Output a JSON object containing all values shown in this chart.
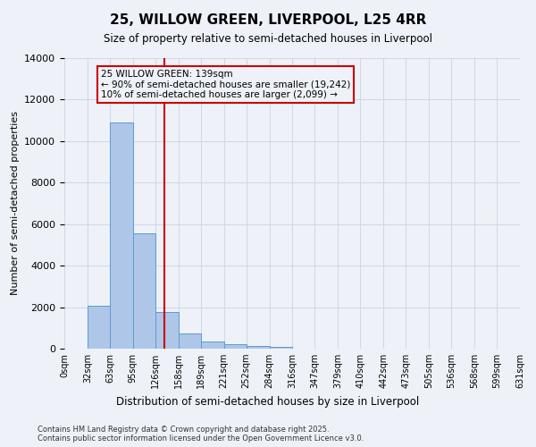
{
  "title": "25, WILLOW GREEN, LIVERPOOL, L25 4RR",
  "subtitle": "Size of property relative to semi-detached houses in Liverpool",
  "xlabel": "Distribution of semi-detached houses by size in Liverpool",
  "ylabel": "Number of semi-detached properties",
  "property_size": 139,
  "annotation_text": "25 WILLOW GREEN: 139sqm\n← 90% of semi-detached houses are smaller (19,242)\n10% of semi-detached houses are larger (2,099) →",
  "bar_edges": [
    0,
    32,
    63,
    95,
    126,
    158,
    189,
    221,
    252,
    284,
    316,
    347,
    379,
    410,
    442,
    473,
    505,
    536,
    568,
    599,
    631
  ],
  "bar_heights": [
    0,
    2050,
    10900,
    5550,
    1750,
    750,
    350,
    200,
    110,
    100,
    0,
    0,
    0,
    0,
    0,
    0,
    0,
    0,
    0,
    0
  ],
  "tick_labels": [
    "0sqm",
    "32sqm",
    "63sqm",
    "95sqm",
    "126sqm",
    "158sqm",
    "189sqm",
    "221sqm",
    "252sqm",
    "284sqm",
    "316sqm",
    "347sqm",
    "379sqm",
    "410sqm",
    "442sqm",
    "473sqm",
    "505sqm",
    "536sqm",
    "568sqm",
    "599sqm",
    "631sqm"
  ],
  "ylim": [
    0,
    14000
  ],
  "yticks": [
    0,
    2000,
    4000,
    6000,
    8000,
    10000,
    12000,
    14000
  ],
  "bar_color": "#aec6e8",
  "bar_edge_color": "#5b9bd5",
  "red_line_color": "#cc0000",
  "grid_color": "#d0d8e8",
  "bg_color": "#eef2f8",
  "footer_line1": "Contains HM Land Registry data © Crown copyright and database right 2025.",
  "footer_line2": "Contains public sector information licensed under the Open Government Licence v3.0."
}
